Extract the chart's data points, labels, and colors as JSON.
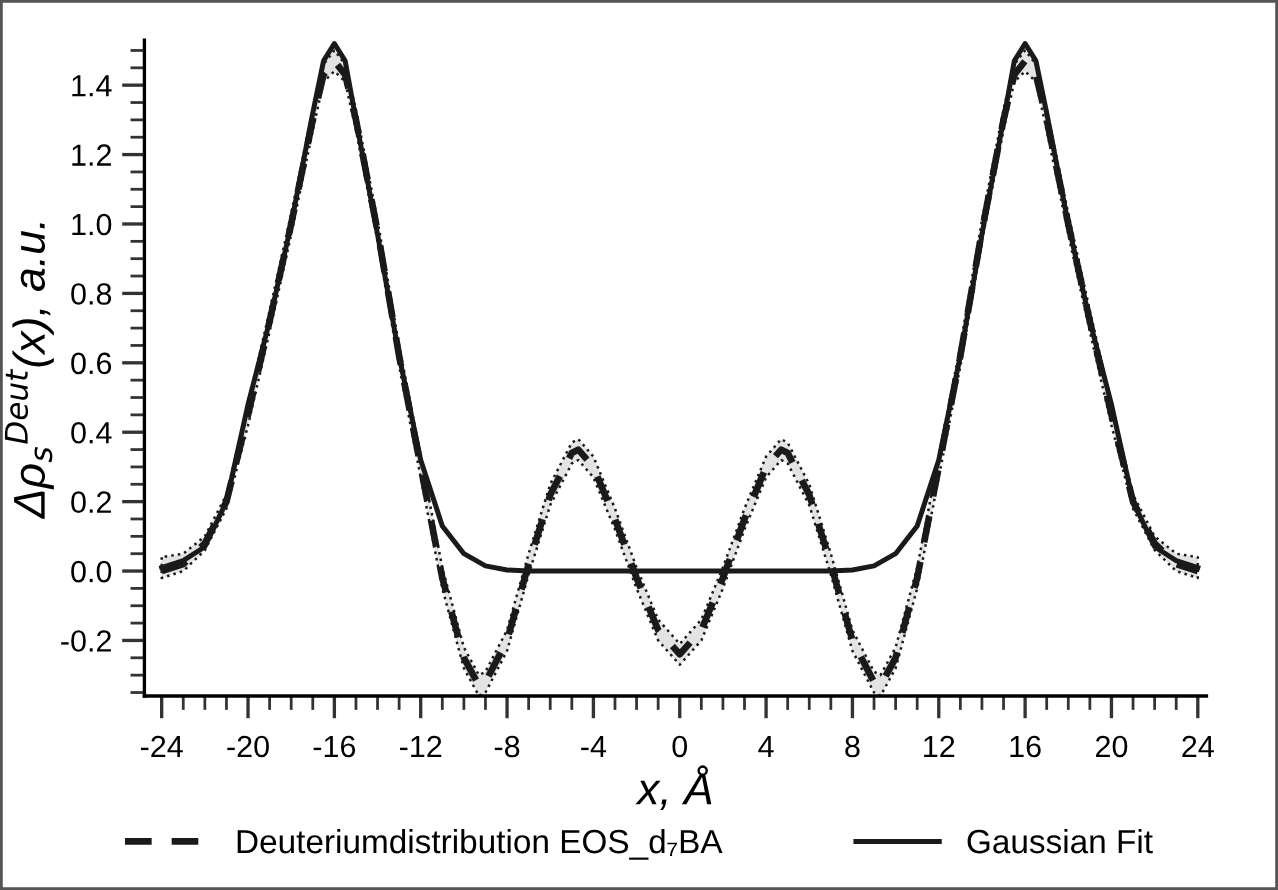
{
  "chart_data": {
    "type": "line",
    "xlabel": "x, Å",
    "ylabel": "Δρ$_{s}$$^{Deut}$(x), a.u.",
    "xlim": [
      -24.8,
      24.4
    ],
    "ylim": [
      -0.36,
      1.53
    ],
    "xticks": [
      -24,
      -20,
      -16,
      -12,
      -8,
      -4,
      0,
      4,
      8,
      12,
      16,
      20,
      24
    ],
    "yticks": [
      {
        "value": -0.2,
        "label": "-0.2"
      },
      {
        "value": 0,
        "label": "0.0"
      },
      {
        "value": 0.2,
        "label": "0.2"
      },
      {
        "value": 0.4,
        "label": "0.4"
      },
      {
        "value": 0.6,
        "label": "0.6"
      },
      {
        "value": 0.8,
        "label": "0.8"
      },
      {
        "value": 1.0,
        "label": "1.0"
      },
      {
        "value": 1.2,
        "label": "1.2"
      },
      {
        "value": 1.4,
        "label": "1.4"
      }
    ],
    "grid": false,
    "legend": "bottom",
    "marker": "none",
    "series": [
      {
        "name": "Deuteriumdistribution EOS_d₇BA",
        "color": "#1a1a1a",
        "line_style": "dashed",
        "x": [
          -24,
          -23,
          -22,
          -21,
          -20,
          -19,
          -18,
          -17,
          -16.5,
          -16,
          -15.5,
          -15,
          -14,
          -13,
          -12,
          -11,
          -10,
          -9.3,
          -9,
          -8,
          -7,
          -6,
          -5,
          -4.7,
          -4,
          -3,
          -2,
          -1,
          0,
          1,
          2,
          3,
          4,
          4.7,
          5,
          6,
          7,
          8,
          9,
          9.3,
          10,
          11,
          12,
          13,
          14,
          15,
          15.5,
          16,
          16.5,
          17,
          18,
          19,
          20,
          21,
          22,
          23,
          24
        ],
        "values": [
          0.0,
          0.02,
          0.08,
          0.2,
          0.45,
          0.72,
          1.0,
          1.3,
          1.43,
          1.47,
          1.43,
          1.3,
          0.98,
          0.62,
          0.3,
          -0.02,
          -0.25,
          -0.33,
          -0.32,
          -0.2,
          0.02,
          0.22,
          0.34,
          0.35,
          0.3,
          0.15,
          -0.02,
          -0.17,
          -0.24,
          -0.17,
          -0.02,
          0.15,
          0.3,
          0.35,
          0.34,
          0.22,
          0.02,
          -0.2,
          -0.32,
          -0.33,
          -0.25,
          -0.02,
          0.3,
          0.62,
          0.98,
          1.3,
          1.43,
          1.47,
          1.43,
          1.3,
          1.0,
          0.72,
          0.45,
          0.2,
          0.08,
          0.02,
          0.0
        ],
        "lower": [
          -0.02,
          0.0,
          0.06,
          0.18,
          0.42,
          0.69,
          0.97,
          1.27,
          1.41,
          1.44,
          1.41,
          1.27,
          0.95,
          0.59,
          0.27,
          -0.05,
          -0.28,
          -0.36,
          -0.35,
          -0.23,
          -0.01,
          0.19,
          0.31,
          0.32,
          0.27,
          0.12,
          -0.05,
          -0.2,
          -0.27,
          -0.2,
          -0.05,
          0.12,
          0.27,
          0.32,
          0.31,
          0.19,
          -0.01,
          -0.23,
          -0.35,
          -0.36,
          -0.28,
          -0.05,
          0.27,
          0.59,
          0.95,
          1.27,
          1.41,
          1.44,
          1.41,
          1.27,
          0.97,
          0.69,
          0.42,
          0.18,
          0.06,
          0.0,
          -0.02
        ],
        "upper": [
          0.04,
          0.05,
          0.1,
          0.22,
          0.48,
          0.75,
          1.03,
          1.33,
          1.46,
          1.5,
          1.46,
          1.33,
          1.01,
          0.65,
          0.33,
          0.01,
          -0.22,
          -0.3,
          -0.29,
          -0.17,
          0.05,
          0.25,
          0.37,
          0.38,
          0.33,
          0.18,
          0.01,
          -0.14,
          -0.21,
          -0.14,
          0.01,
          0.18,
          0.33,
          0.38,
          0.37,
          0.25,
          0.05,
          -0.17,
          -0.29,
          -0.3,
          -0.22,
          0.01,
          0.33,
          0.65,
          1.01,
          1.33,
          1.46,
          1.5,
          1.46,
          1.33,
          1.03,
          0.75,
          0.48,
          0.22,
          0.1,
          0.05,
          0.04
        ]
      },
      {
        "name": "Gaussian Fit",
        "color": "#1a1a1a",
        "line_style": "solid",
        "x": [
          -24,
          -23,
          -22,
          -21,
          -20,
          -19,
          -18,
          -17,
          -16.5,
          -16,
          -15.5,
          -15,
          -14,
          -13,
          -12,
          -11,
          -10,
          -9,
          -8,
          -7,
          7,
          8,
          9,
          10,
          11,
          12,
          13,
          14,
          15,
          15.5,
          16,
          16.5,
          17,
          18,
          19,
          20,
          21,
          22,
          23,
          24
        ],
        "values": [
          0.01,
          0.03,
          0.07,
          0.2,
          0.48,
          0.72,
          1.0,
          1.32,
          1.47,
          1.52,
          1.47,
          1.3,
          0.97,
          0.62,
          0.32,
          0.13,
          0.05,
          0.015,
          0.003,
          0.0,
          0.0,
          0.003,
          0.015,
          0.05,
          0.13,
          0.32,
          0.62,
          0.97,
          1.3,
          1.47,
          1.52,
          1.47,
          1.32,
          1.0,
          0.72,
          0.48,
          0.2,
          0.07,
          0.03,
          0.01
        ]
      }
    ]
  }
}
